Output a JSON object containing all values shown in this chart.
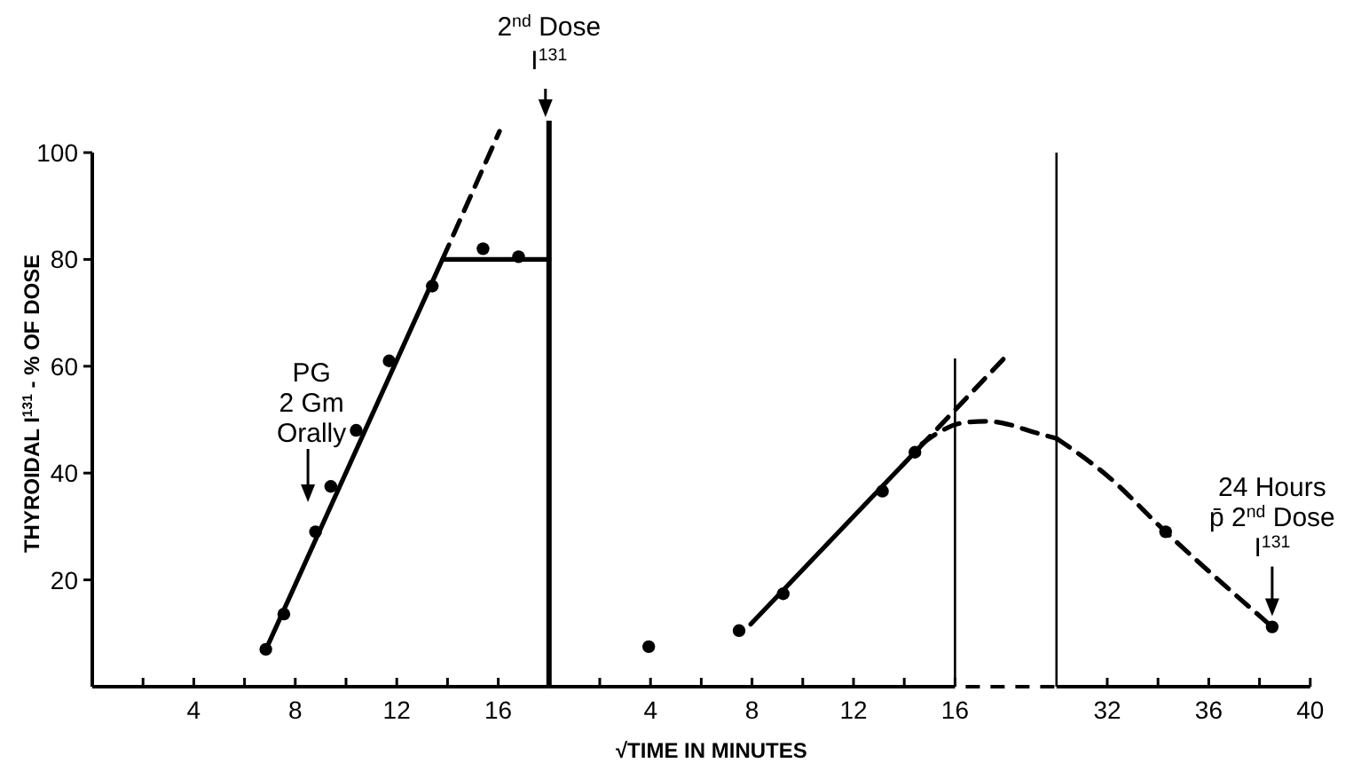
{
  "chart_data": [
    {
      "type": "scatter",
      "ylabel": "THYROIDAL I$^{131}$ - % OF DOSE",
      "xlim": [
        0,
        18
      ],
      "xticks": [
        {
          "value": 2,
          "label": null
        },
        4,
        {
          "value": 6,
          "label": null
        },
        8,
        {
          "value": 10,
          "label": null
        },
        12,
        {
          "value": 14,
          "label": null
        },
        16
      ],
      "ylim": [
        0,
        106
      ],
      "yticks": [
        20,
        40,
        60,
        80,
        100
      ],
      "ref_lines": [
        {
          "axis": "x",
          "value": 18,
          "label": "2$^{nd}$ Dose\nI$^{131}$",
          "color": "#000000"
        }
      ],
      "annotations": [
        "PG\n2 Gm\nOrally"
      ],
      "series": [
        {
          "type": "scatter",
          "marker": "circle",
          "color": "#000000",
          "x": [
            6.84,
            7.55,
            8.8,
            9.4,
            10.4,
            11.7,
            13.4,
            15.4,
            16.8
          ],
          "values": [
            7,
            13.6,
            29,
            37.5,
            48,
            61,
            75,
            82,
            80.5
          ]
        },
        {
          "type": "line",
          "color": "#000000",
          "line_style": "solid",
          "x": [
            6.8,
            13.8,
            18
          ],
          "values": [
            6.5,
            80,
            80
          ]
        },
        {
          "type": "line",
          "color": "#000000",
          "line_style": "dashed",
          "x": [
            13.8,
            16.05
          ],
          "values": [
            80,
            104
          ]
        }
      ]
    },
    {
      "type": "scatter",
      "xlabel": "√TIME IN MINUTES",
      "tick_labels": "x",
      "xlim": [
        0,
        20
      ],
      "xticks": [
        {
          "value": 2,
          "label": null
        },
        4,
        {
          "value": 6,
          "label": null
        },
        8,
        {
          "value": 10,
          "label": null
        },
        12,
        {
          "value": 14,
          "label": null
        },
        16
      ],
      "ylim": [
        0,
        106
      ],
      "yticks": [
        20,
        40,
        60,
        80,
        100
      ],
      "ref_lines": [
        {
          "axis": "x",
          "value": 16,
          "color": "#000000"
        }
      ],
      "series": [
        {
          "type": "scatter",
          "marker": "circle",
          "color": "#000000",
          "x": [
            3.93,
            7.49,
            9.23,
            13.14,
            14.42
          ],
          "values": [
            7.5,
            10.5,
            17.4,
            36.6,
            43.9
          ]
        },
        {
          "type": "line",
          "color": "#000000",
          "line_style": "solid",
          "x": [
            7.95,
            14.58
          ],
          "values": [
            11.7,
            44.7
          ]
        },
        {
          "type": "line",
          "color": "#000000",
          "line_style": "dashed",
          "x": [
            14.58,
            17.96
          ],
          "values": [
            44.7,
            61.6
          ]
        },
        {
          "type": "line",
          "color": "#000000",
          "line_style": "dashed",
          "x": [
            14.7,
            15.5,
            16.3,
            17.26,
            18.2,
            19,
            20
          ],
          "values": [
            45.5,
            48,
            49.4,
            49.7,
            49,
            47.8,
            46.5
          ]
        }
      ]
    },
    {
      "type": "scatter",
      "tick_labels": "x",
      "xlim": [
        30,
        40
      ],
      "xticks": [
        32,
        {
          "value": 34,
          "label": null
        },
        36,
        {
          "value": 38,
          "label": null
        },
        40
      ],
      "ylim": [
        0,
        100
      ],
      "yticks": [
        20,
        40,
        60,
        80,
        100
      ],
      "annotations": [
        {
          "text": "24 Hours\np̄ 2$^{nd}$ Dose\nI$^{131}$",
          "x": 38.5,
          "y": 11.2
        }
      ],
      "series": [
        {
          "type": "scatter",
          "marker": "circle",
          "color": "#000000",
          "x": [
            34.3,
            38.5
          ],
          "values": [
            29,
            11.2
          ]
        },
        {
          "type": "line",
          "color": "#000000",
          "line_style": "dashed",
          "x": [
            30,
            32,
            34.3,
            38.5
          ],
          "values": [
            46.5,
            39.5,
            29,
            11.2
          ]
        }
      ]
    }
  ]
}
